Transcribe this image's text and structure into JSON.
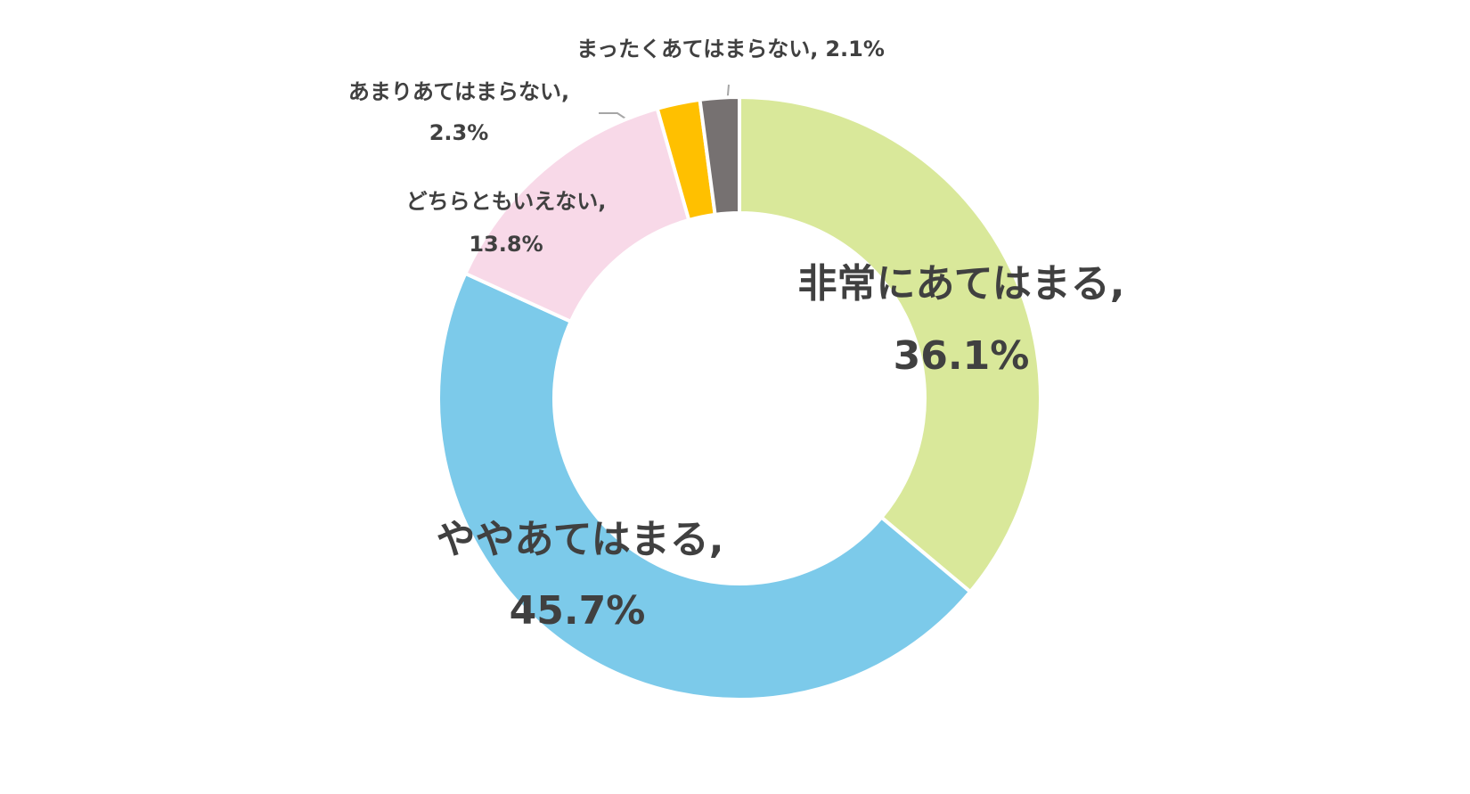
{
  "chart_data": {
    "type": "donut",
    "categories": [
      "非常にあてはまる,",
      "ややあてはまる,",
      "どちらともいえない,",
      "あまりあてはまらない,",
      "まったくあてはまらない,"
    ],
    "values": [
      36.1,
      45.7,
      13.8,
      2.3,
      2.1
    ],
    "value_labels": [
      "36.1%",
      "45.7%",
      "13.8%",
      "2.3%",
      "2.1%"
    ],
    "colors": [
      "#d9e89a",
      "#7ccaea",
      "#f8d9e8",
      "#ffc000",
      "#767171"
    ]
  }
}
